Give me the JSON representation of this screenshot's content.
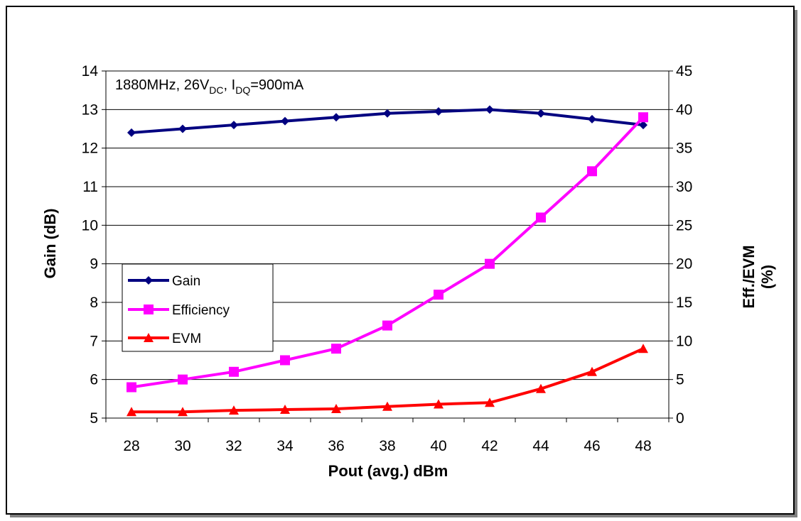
{
  "chart_data": {
    "type": "line",
    "annotation": {
      "text_a": "1880MHz, 26V",
      "sub_a": "DC",
      "text_b": ", I",
      "sub_b": "DQ",
      "text_c": "=900mA"
    },
    "xlabel": "Pout (avg.) dBm",
    "ylabel_left": "Gain (dB)",
    "ylabel_right_line1": "Eff./EVM",
    "ylabel_right_line2": "(%)",
    "x_ticks": [
      28,
      30,
      32,
      34,
      36,
      38,
      40,
      42,
      44,
      46,
      48
    ],
    "xlim": [
      27,
      49
    ],
    "ylim_left": [
      5,
      14
    ],
    "ylim_right": [
      0,
      45
    ],
    "y_ticks_left": [
      5,
      6,
      7,
      8,
      9,
      10,
      11,
      12,
      13,
      14
    ],
    "y_ticks_right": [
      0,
      5,
      10,
      15,
      20,
      25,
      30,
      35,
      40,
      45
    ],
    "grid": "horizontal",
    "legend_position": "center-left",
    "series": [
      {
        "name": "Gain",
        "axis": "left",
        "marker": "diamond",
        "color": "#000080",
        "x": [
          28,
          30,
          32,
          34,
          36,
          38,
          40,
          42,
          44,
          46,
          48
        ],
        "values": [
          12.4,
          12.5,
          12.6,
          12.7,
          12.8,
          12.9,
          12.95,
          13.0,
          12.9,
          12.75,
          12.6
        ]
      },
      {
        "name": "Efficiency",
        "axis": "right",
        "marker": "square",
        "color": "#FF00FF",
        "x": [
          28,
          30,
          32,
          34,
          36,
          38,
          40,
          42,
          44,
          46,
          48
        ],
        "values": [
          4.0,
          5.0,
          6.0,
          7.5,
          9.0,
          12.0,
          16.0,
          20.0,
          26.0,
          32.0,
          39.0
        ]
      },
      {
        "name": "EVM",
        "axis": "right",
        "marker": "triangle",
        "color": "#FF0000",
        "x": [
          28,
          30,
          32,
          34,
          36,
          38,
          40,
          42,
          44,
          46,
          48
        ],
        "values": [
          0.8,
          0.8,
          1.0,
          1.1,
          1.2,
          1.5,
          1.8,
          2.0,
          3.8,
          6.0,
          9.0
        ]
      }
    ]
  }
}
